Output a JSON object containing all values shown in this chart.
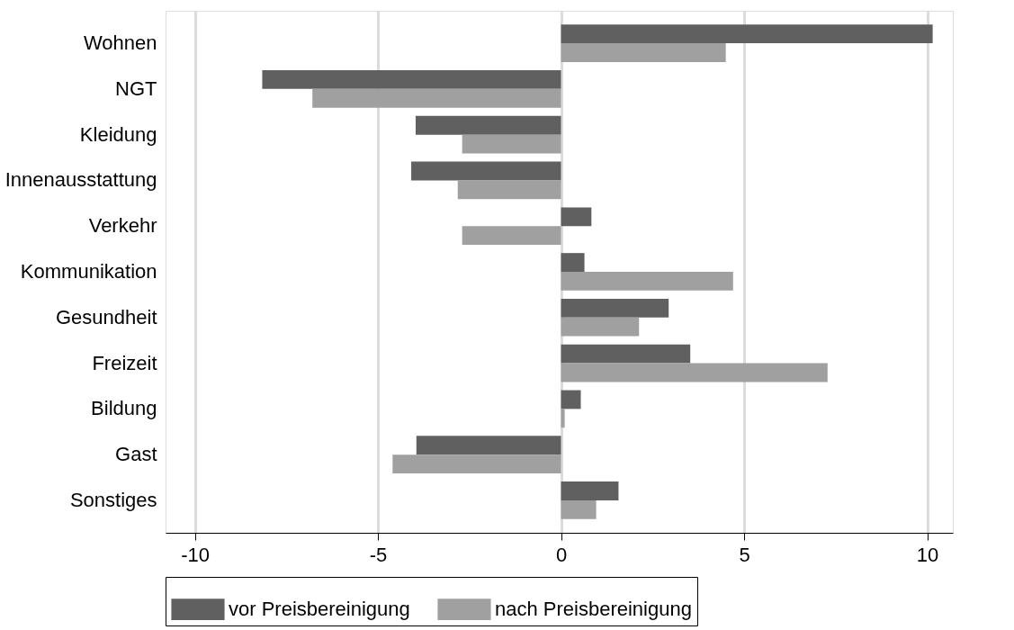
{
  "chart_data": {
    "type": "bar",
    "orientation": "horizontal",
    "categories": [
      "Wohnen",
      "NGT",
      "Kleidung",
      "Innenausstattung",
      "Verkehr",
      "Kommunikation",
      "Gesundheit",
      "Freizeit",
      "Bildung",
      "Gast",
      "Sonstiges"
    ],
    "series": [
      {
        "name": "vor Preisbereinigung",
        "color": "#606060",
        "values": [
          10.15,
          -8.16,
          -3.97,
          -4.09,
          0.83,
          0.64,
          2.94,
          3.53,
          0.54,
          -3.95,
          1.57
        ]
      },
      {
        "name": "nach Preisbereinigung",
        "color": "#a0a0a0",
        "values": [
          4.5,
          -6.79,
          -2.7,
          -2.82,
          -2.7,
          4.7,
          2.13,
          7.28,
          0.1,
          -4.6,
          0.96
        ]
      }
    ],
    "xlim": [
      -10.8,
      10.7
    ],
    "xticks": [
      -10,
      -5,
      0,
      5,
      10
    ],
    "grid": "x",
    "legend": "bottom"
  }
}
